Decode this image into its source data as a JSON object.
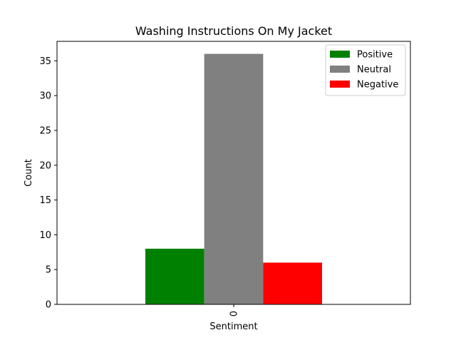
{
  "chart_data": {
    "type": "bar",
    "title": "Washing Instructions On My Jacket",
    "xlabel": "Sentiment",
    "ylabel": "Count",
    "categories": [
      "0"
    ],
    "series": [
      {
        "name": "Positive",
        "values": [
          8
        ],
        "color": "#008000"
      },
      {
        "name": "Neutral",
        "values": [
          36
        ],
        "color": "#808080"
      },
      {
        "name": "Negative",
        "values": [
          6
        ],
        "color": "#ff0000"
      }
    ],
    "ylim": [
      0,
      37.8
    ],
    "yticks": [
      0,
      5,
      10,
      15,
      20,
      25,
      30,
      35
    ],
    "grid": false,
    "legend_position": "top-right"
  }
}
